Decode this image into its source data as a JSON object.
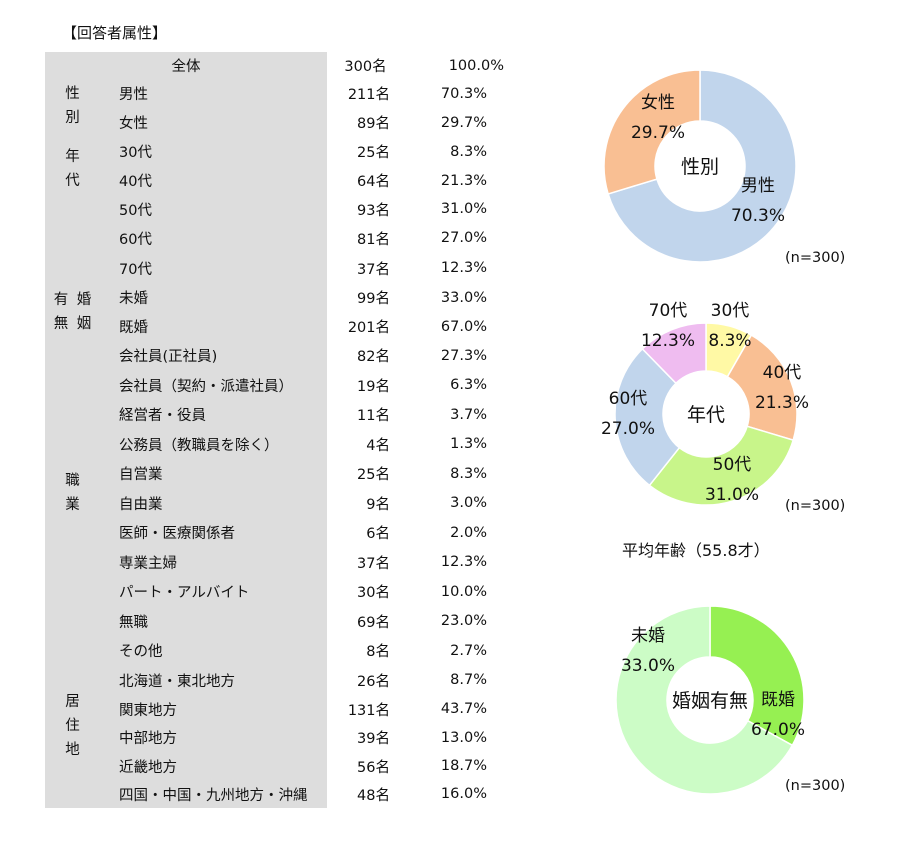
{
  "title": "【回答者属性】",
  "header": {
    "label": "全体",
    "n": "300名",
    "pct": "100.0%"
  },
  "groups": [
    {
      "name": "性\n別",
      "rows": [
        {
          "label": "男性",
          "n": "211名",
          "pct": "70.3%"
        },
        {
          "label": "女性",
          "n": "89名",
          "pct": "29.7%"
        }
      ]
    },
    {
      "name": "年\n代",
      "rows": [
        {
          "label": "30代",
          "n": "25名",
          "pct": "8.3%"
        },
        {
          "label": "40代",
          "n": "64名",
          "pct": "21.3%"
        },
        {
          "label": "50代",
          "n": "93名",
          "pct": "31.0%"
        },
        {
          "label": "60代",
          "n": "81名",
          "pct": "27.0%"
        },
        {
          "label": "70代",
          "n": "37名",
          "pct": "12.3%"
        }
      ]
    },
    {
      "name": "有 婚\n無 姻",
      "rows": [
        {
          "label": "未婚",
          "n": "99名",
          "pct": "33.0%"
        },
        {
          "label": "既婚",
          "n": "201名",
          "pct": "67.0%"
        }
      ]
    },
    {
      "name": "職\n業",
      "rows": [
        {
          "label": "会社員(正社員)",
          "n": "82名",
          "pct": "27.3%"
        },
        {
          "label": "会社員（契約・派遣社員）",
          "n": "19名",
          "pct": "6.3%"
        },
        {
          "label": "経営者・役員",
          "n": "11名",
          "pct": "3.7%"
        },
        {
          "label": "公務員（教職員を除く）",
          "n": "4名",
          "pct": "1.3%"
        },
        {
          "label": "自営業",
          "n": "25名",
          "pct": "8.3%"
        },
        {
          "label": "自由業",
          "n": "9名",
          "pct": "3.0%"
        },
        {
          "label": "医師・医療関係者",
          "n": "6名",
          "pct": "2.0%"
        },
        {
          "label": "専業主婦",
          "n": "37名",
          "pct": "12.3%"
        },
        {
          "label": "パート・アルバイト",
          "n": "30名",
          "pct": "10.0%"
        },
        {
          "label": "無職",
          "n": "69名",
          "pct": "23.0%"
        },
        {
          "label": "その他",
          "n": "8名",
          "pct": "2.7%"
        }
      ]
    },
    {
      "name": "居\n住\n地",
      "rows": [
        {
          "label": "北海道・東北地方",
          "n": "26名",
          "pct": "8.7%"
        },
        {
          "label": "関東地方",
          "n": "131名",
          "pct": "43.7%"
        },
        {
          "label": "中部地方",
          "n": "39名",
          "pct": "13.0%"
        },
        {
          "label": "近畿地方",
          "n": "56名",
          "pct": "18.7%"
        },
        {
          "label": "四国・中国・九州地方・沖縄",
          "n": "48名",
          "pct": "16.0%"
        }
      ]
    }
  ],
  "notes": {
    "n1": "(n=300)",
    "n2": "(n=300)",
    "n3": "(n=300)",
    "avg_age": "平均年齢（55.8才）"
  },
  "chart_data": [
    {
      "type": "pie",
      "title": "性別",
      "categories": [
        "男性",
        "女性"
      ],
      "values": [
        70.3,
        29.7
      ],
      "colors": [
        "#c1d5ec",
        "#f9bf93"
      ],
      "labels": [
        "70.3%",
        "29.7%"
      ]
    },
    {
      "type": "pie",
      "title": "年代",
      "categories": [
        "30代",
        "40代",
        "50代",
        "60代",
        "70代"
      ],
      "values": [
        8.3,
        21.3,
        31.0,
        27.0,
        12.3
      ],
      "colors": [
        "#fff9a5",
        "#f9bf93",
        "#c8f58a",
        "#c1d5ec",
        "#efbcf0"
      ],
      "labels": [
        "8.3%",
        "21.3%",
        "31.0%",
        "27.0%",
        "12.3%"
      ]
    },
    {
      "type": "pie",
      "title": "婚姻有無",
      "categories": [
        "未婚",
        "既婚"
      ],
      "values": [
        33.0,
        67.0
      ],
      "colors": [
        "#96f052",
        "#ccfcc6"
      ],
      "labels": [
        "33.0%",
        "67.0%"
      ]
    }
  ]
}
